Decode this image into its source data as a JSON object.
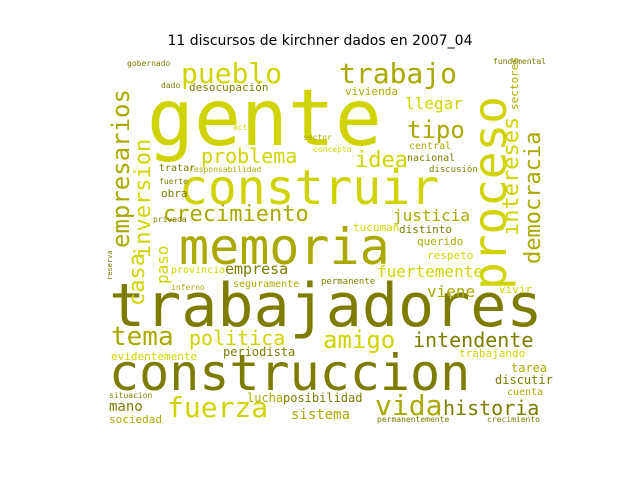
{
  "title": "11 discursos de kirchner dados en 2007_04",
  "colors": {
    "dark": "#7c7c00",
    "mid": "#a9a900",
    "light": "#cfd400",
    "pale": "#e2e36a"
  },
  "words": {
    "gente": "gente",
    "trabajadores": "trabajadores",
    "construccion": "construccion",
    "memoria": "memoria",
    "construir": "construir",
    "proceso": "proceso",
    "trabajo": "trabajo",
    "pueblo": "pueblo",
    "empresarios": "empresarios",
    "inversion": "inversion",
    "casa": "casa",
    "crecimiento": "crecimiento",
    "problema": "problema",
    "tipo": "tipo",
    "idea": "idea",
    "intereses": "intereses",
    "democracia": "democracia",
    "fuerza": "fuerza",
    "vida": "vida",
    "historia": "historia",
    "tema": "tema",
    "amigo": "amigo",
    "politica": "politica",
    "intendente": "intendente",
    "justicia": "justicia",
    "fuertemente": "fuertemente",
    "empresa": "empresa",
    "viene": "viene",
    "paso": "paso",
    "llegar": "llegar",
    "desocupacion": "desocupación",
    "vivienda": "vivienda",
    "sistema": "sistema",
    "posibilidad": "posibilidad",
    "mano": "mano",
    "sociedad": "sociedad",
    "lucha": "lucha",
    "periodista": "periodista",
    "evidentemente": "evidentemente",
    "trabajando": "trabajando",
    "tarea": "tarea",
    "discutir": "discutir",
    "cuenta": "cuenta",
    "distinto": "distinto",
    "querido": "querido",
    "respeto": "respeto",
    "tucuman": "tucuman",
    "nacional": "nacional",
    "provincia": "provincia",
    "seguramente": "seguramente",
    "permanente": "permanente",
    "vivir": "vivir",
    "obra": "obra",
    "tratar": "tratar",
    "responsabilidad": "responsabilidad",
    "discusion": "discusión",
    "sectores": "sectores",
    "central": "central",
    "gobernado": "gobernado",
    "situacion": "situacion",
    "permanentemente": "permanentemente",
    "fuerte": "fuerte",
    "inferno": "inferno",
    "crecimiento_small": "crecimiento",
    "concepto": "concepto",
    "fundamental": "fundamental",
    "reserva": "reserva",
    "dado": "dado",
    "sector": "sector",
    "acto": "acto",
    "privada": "privada"
  }
}
